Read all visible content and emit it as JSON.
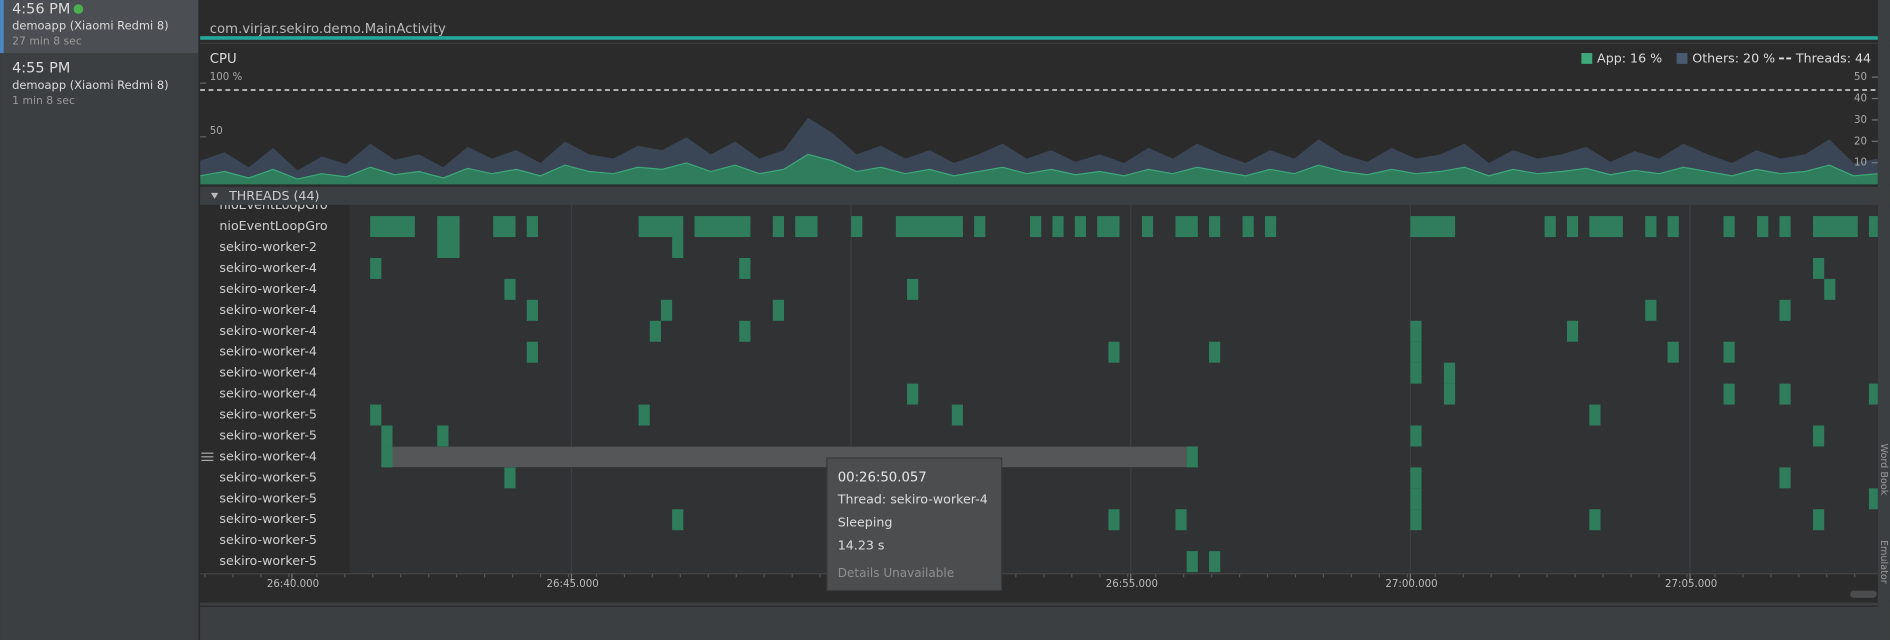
{
  "sessions": [
    {
      "time": "4:56 PM",
      "device": "demoapp (Xiaomi Redmi 8)",
      "duration": "27 min 8 sec"
    },
    {
      "time": "4:55 PM",
      "device": "demoapp (Xiaomi Redmi 8)",
      "duration": "1 min 8 sec"
    }
  ],
  "activity": "com.virjar.sekiro.demo.MainActivity",
  "cpu": {
    "type": "area",
    "title": "CPU",
    "ylim": [
      0,
      100
    ],
    "yticks": [
      {
        "value": 100,
        "label": "100 %"
      },
      50
    ],
    "y2lim": [
      0,
      50
    ],
    "y2ticks": [
      50,
      40,
      30,
      20,
      10
    ],
    "threads_line": 44,
    "series": [
      {
        "name": "App: 16 %",
        "color": "#2f7d5d",
        "values": [
          8,
          12,
          6,
          14,
          5,
          10,
          7,
          16,
          9,
          12,
          6,
          15,
          10,
          14,
          8,
          18,
          12,
          10,
          16,
          14,
          20,
          12,
          18,
          10,
          14,
          28,
          22,
          12,
          16,
          10,
          14,
          8,
          12,
          16,
          10,
          14,
          9,
          12,
          8,
          14,
          10,
          16,
          12,
          8,
          14,
          10,
          18,
          12,
          9,
          14,
          10,
          12,
          16,
          8,
          14,
          10,
          12,
          15,
          9,
          13,
          10,
          16,
          12,
          8,
          14,
          10,
          12,
          18,
          8,
          10
        ]
      },
      {
        "name": "Others: 20 %",
        "color": "#3a4656",
        "values": [
          14,
          18,
          10,
          20,
          8,
          16,
          12,
          22,
          14,
          16,
          10,
          20,
          14,
          18,
          12,
          22,
          16,
          14,
          20,
          18,
          24,
          16,
          22,
          14,
          18,
          34,
          26,
          16,
          20,
          14,
          18,
          12,
          16,
          22,
          14,
          18,
          12,
          16,
          12,
          20,
          14,
          22,
          16,
          12,
          18,
          14,
          24,
          16,
          12,
          20,
          14,
          16,
          22,
          12,
          18,
          14,
          16,
          20,
          12,
          18,
          14,
          22,
          16,
          12,
          18,
          14,
          16,
          24,
          12,
          14
        ]
      }
    ],
    "threads_legend": "Threads: 44"
  },
  "threads": {
    "header": "THREADS (44)",
    "color": "#2f7d5d",
    "xlim": [
      -1.64,
      28.36
    ],
    "xticks": [
      {
        "value": 0,
        "label": "26:40.000"
      },
      {
        "value": 5,
        "label": "26:45.000"
      },
      {
        "value": 10,
        "label": "26:50.000"
      },
      {
        "value": 15,
        "label": "26:55.000"
      },
      {
        "value": 20,
        "label": "27:00.000"
      },
      {
        "value": 25,
        "label": "27:05.000"
      }
    ],
    "rows": [
      {
        "name": "nioEventLoopGro",
        "segments": []
      },
      {
        "name": "nioEventLoopGro",
        "segments": [
          [
            1.4,
            2.2
          ],
          [
            2.6,
            3.0
          ],
          [
            3.6,
            4.0
          ],
          [
            4.2,
            4.4
          ],
          [
            6.2,
            7.0
          ],
          [
            7.2,
            8.2
          ],
          [
            8.6,
            8.8
          ],
          [
            9.0,
            9.4
          ],
          [
            10.0,
            10.2
          ],
          [
            10.8,
            12.0
          ],
          [
            12.2,
            12.4
          ],
          [
            13.2,
            13.4
          ],
          [
            13.6,
            13.8
          ],
          [
            14.0,
            14.2
          ],
          [
            14.4,
            14.8
          ],
          [
            15.2,
            15.4
          ],
          [
            15.8,
            16.2
          ],
          [
            16.4,
            16.6
          ],
          [
            17.0,
            17.2
          ],
          [
            17.4,
            17.6
          ],
          [
            20.0,
            20.8
          ],
          [
            22.4,
            22.6
          ],
          [
            22.8,
            23.0
          ],
          [
            23.2,
            23.8
          ],
          [
            24.2,
            24.4
          ],
          [
            24.6,
            24.8
          ],
          [
            25.6,
            25.8
          ],
          [
            26.2,
            26.4
          ],
          [
            26.6,
            26.8
          ],
          [
            27.2,
            28.0
          ],
          [
            28.2,
            28.4
          ]
        ]
      },
      {
        "name": "sekiro-worker-2",
        "segments": [
          [
            2.6,
            3.0
          ],
          [
            6.8,
            7.0
          ]
        ]
      },
      {
        "name": "sekiro-worker-4",
        "segments": [
          [
            1.4,
            1.6
          ],
          [
            8.0,
            8.2
          ],
          [
            27.2,
            27.4
          ]
        ]
      },
      {
        "name": "sekiro-worker-4",
        "segments": [
          [
            3.8,
            4.0
          ],
          [
            11.0,
            11.2
          ],
          [
            27.4,
            27.6
          ]
        ]
      },
      {
        "name": "sekiro-worker-4",
        "segments": [
          [
            4.2,
            4.4
          ],
          [
            6.6,
            6.8
          ],
          [
            8.6,
            8.8
          ],
          [
            24.2,
            24.4
          ],
          [
            26.6,
            26.8
          ]
        ]
      },
      {
        "name": "sekiro-worker-4",
        "segments": [
          [
            6.4,
            6.6
          ],
          [
            8.0,
            8.2
          ],
          [
            20.0,
            20.2
          ],
          [
            22.8,
            23.0
          ]
        ]
      },
      {
        "name": "sekiro-worker-4",
        "segments": [
          [
            4.2,
            4.4
          ],
          [
            14.6,
            14.8
          ],
          [
            16.4,
            16.6
          ],
          [
            20.0,
            20.2
          ],
          [
            24.6,
            24.8
          ],
          [
            25.6,
            25.8
          ]
        ]
      },
      {
        "name": "sekiro-worker-4",
        "segments": [
          [
            20.0,
            20.2
          ],
          [
            20.6,
            20.8
          ]
        ]
      },
      {
        "name": "sekiro-worker-4",
        "segments": [
          [
            11.0,
            11.2
          ],
          [
            20.6,
            20.8
          ],
          [
            25.6,
            25.8
          ],
          [
            26.6,
            26.8
          ],
          [
            28.2,
            28.4
          ]
        ]
      },
      {
        "name": "sekiro-worker-5",
        "segments": [
          [
            1.4,
            1.6
          ],
          [
            6.2,
            6.4
          ],
          [
            11.8,
            12.0
          ],
          [
            23.2,
            23.4
          ]
        ]
      },
      {
        "name": "sekiro-worker-5",
        "segments": [
          [
            1.6,
            1.8
          ],
          [
            2.6,
            2.8
          ],
          [
            20.0,
            20.2
          ],
          [
            27.2,
            27.4
          ]
        ]
      },
      {
        "name": "sekiro-worker-4",
        "segments": [
          [
            1.6,
            1.8
          ],
          [
            16.0,
            16.2
          ]
        ]
      },
      {
        "name": "sekiro-worker-5",
        "segments": [
          [
            3.8,
            4.0
          ],
          [
            20.0,
            20.2
          ],
          [
            26.6,
            26.8
          ]
        ]
      },
      {
        "name": "sekiro-worker-5",
        "segments": [
          [
            20.0,
            20.2
          ],
          [
            28.2,
            28.4
          ]
        ]
      },
      {
        "name": "sekiro-worker-5",
        "segments": [
          [
            6.8,
            7.0
          ],
          [
            14.6,
            14.8
          ],
          [
            15.8,
            16.0
          ],
          [
            20.0,
            20.2
          ],
          [
            23.2,
            23.4
          ],
          [
            27.2,
            27.4
          ]
        ]
      },
      {
        "name": "sekiro-worker-5",
        "segments": []
      },
      {
        "name": "sekiro-worker-5",
        "segments": [
          [
            16.0,
            16.2
          ],
          [
            16.4,
            16.6
          ]
        ]
      }
    ],
    "selected_row": 12
  },
  "tooltip": {
    "time": "00:26:50.057",
    "thread": "Thread: sekiro-worker-4",
    "state": "Sleeping",
    "duration": "14.23 s",
    "details": "Details Unavailable"
  },
  "side_tools": [
    "Word Book",
    "Emulator"
  ]
}
